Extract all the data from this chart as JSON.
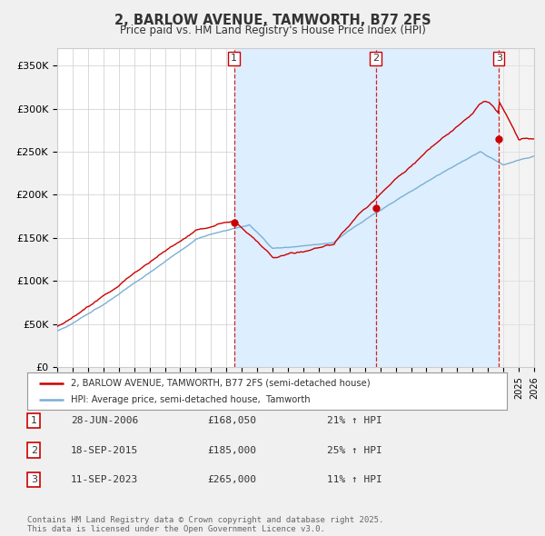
{
  "title": "2, BARLOW AVENUE, TAMWORTH, B77 2FS",
  "subtitle": "Price paid vs. HM Land Registry's House Price Index (HPI)",
  "hpi_label": "HPI: Average price, semi-detached house,  Tamworth",
  "price_label": "2, BARLOW AVENUE, TAMWORTH, B77 2FS (semi-detached house)",
  "price_color": "#cc0000",
  "hpi_color": "#7ab0d4",
  "shade_color": "#ddeeff",
  "background_color": "#f0f0f0",
  "plot_bg_color": "#ffffff",
  "ylim": [
    0,
    370000
  ],
  "yticks": [
    0,
    50000,
    100000,
    150000,
    200000,
    250000,
    300000,
    350000
  ],
  "ytick_labels": [
    "£0",
    "£50K",
    "£100K",
    "£150K",
    "£200K",
    "£250K",
    "£300K",
    "£350K"
  ],
  "transactions": [
    {
      "num": 1,
      "date": "28-JUN-2006",
      "price": 168050,
      "year": 2006.49,
      "pct": "21%",
      "dir": "↑"
    },
    {
      "num": 2,
      "date": "18-SEP-2015",
      "price": 185000,
      "year": 2015.71,
      "pct": "25%",
      "dir": "↑"
    },
    {
      "num": 3,
      "date": "11-SEP-2023",
      "price": 265000,
      "year": 2023.71,
      "pct": "11%",
      "dir": "↑"
    }
  ],
  "footer": "Contains HM Land Registry data © Crown copyright and database right 2025.\nThis data is licensed under the Open Government Licence v3.0.",
  "xmin": 1995,
  "xmax": 2026
}
